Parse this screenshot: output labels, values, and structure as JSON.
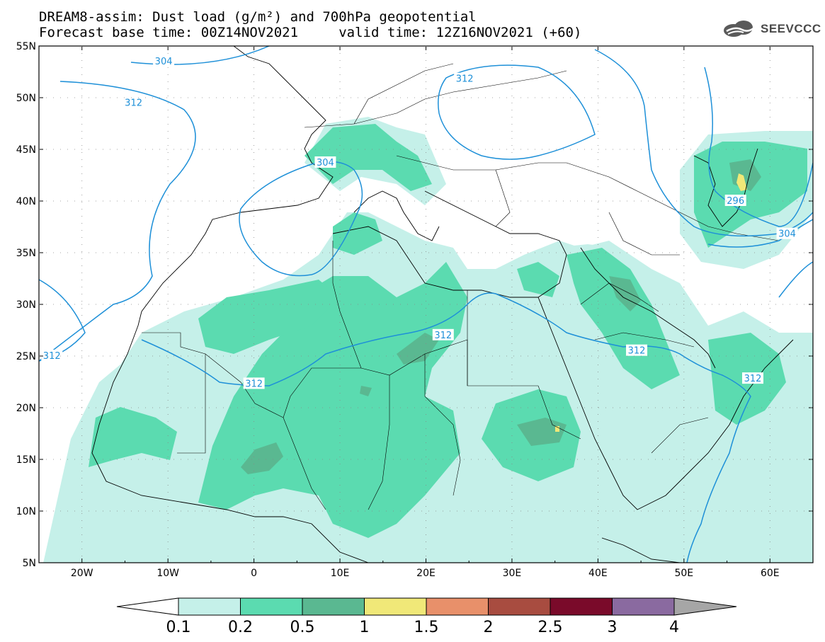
{
  "header": {
    "title_line1": "DREAM8-assim: Dust load (g/m²) and 700hPa geopotential",
    "title_line2": "Forecast base time: 00Z14NOV2021     valid time: 12Z16NOV2021 (+60)",
    "logo_text": "SEEVCCC",
    "logo_icon": "cloud-icon"
  },
  "map": {
    "lat_labels": [
      "55N",
      "50N",
      "45N",
      "40N",
      "35N",
      "30N",
      "25N",
      "20N",
      "15N",
      "10N",
      "5N"
    ],
    "lon_labels": [
      "20W",
      "10W",
      "0",
      "10E",
      "20E",
      "30E",
      "40E",
      "50E",
      "60E"
    ],
    "contour_color": "#1e90d8",
    "contour_labels": [
      {
        "text": "304",
        "lon": -10.5,
        "lat": 53.5
      },
      {
        "text": "312",
        "lon": -14,
        "lat": 49.5
      },
      {
        "text": "312",
        "lon": 24.5,
        "lat": 51.8
      },
      {
        "text": "304",
        "lon": 8.3,
        "lat": 43.7
      },
      {
        "text": "296",
        "lon": 56,
        "lat": 40
      },
      {
        "text": "304",
        "lon": 62,
        "lat": 36.8
      },
      {
        "text": "312",
        "lon": -23.5,
        "lat": 25
      },
      {
        "text": "312",
        "lon": 0,
        "lat": 22.3
      },
      {
        "text": "312",
        "lon": 22,
        "lat": 27
      },
      {
        "text": "312",
        "lon": 44.5,
        "lat": 25.5
      },
      {
        "text": "312",
        "lon": 58,
        "lat": 22.8
      }
    ]
  },
  "colorbar": {
    "labels": [
      "0.1",
      "0.2",
      "0.5",
      "1",
      "1.5",
      "2",
      "2.5",
      "3",
      "4"
    ],
    "colors": [
      "#c5f0e9",
      "#5bdbb0",
      "#5ab891",
      "#f0e878",
      "#e8906a",
      "#a84c40",
      "#7a0a2a",
      "#8a6aa0"
    ],
    "min_arrow_color": "#ffffff",
    "max_arrow_color": "#a6a6a6"
  }
}
